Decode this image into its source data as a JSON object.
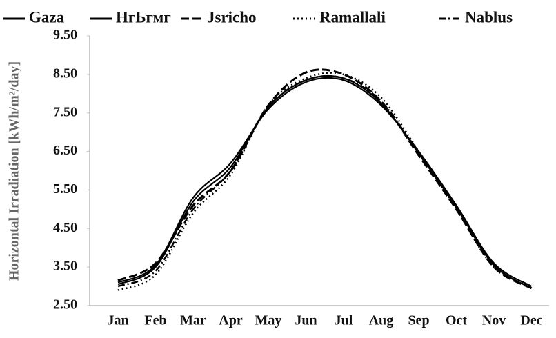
{
  "chart_data": {
    "type": "line",
    "y_label": "Horizontal Irradiation [kWh/m²/day]",
    "categories": [
      "Jan",
      "Feb",
      "Mar",
      "Apr",
      "May",
      "Jun",
      "Jul",
      "Aug",
      "Sep",
      "Oct",
      "Nov",
      "Dec"
    ],
    "series": [
      {
        "name": "Gaza",
        "color": "#000000",
        "line_style": "solid",
        "values": [
          3.1,
          3.55,
          5.3,
          6.2,
          7.6,
          8.3,
          8.35,
          7.7,
          6.5,
          5.1,
          3.6,
          3.0
        ]
      },
      {
        "name": "НгЬгмг",
        "color": "#000000",
        "line_style": "solid",
        "values": [
          3.05,
          3.5,
          5.2,
          6.1,
          7.65,
          8.35,
          8.4,
          7.75,
          6.45,
          5.05,
          3.55,
          2.95
        ]
      },
      {
        "name": "Jsricho",
        "color": "#000000",
        "line_style": "dashed",
        "values": [
          3.15,
          3.6,
          5.1,
          6.0,
          7.7,
          8.55,
          8.5,
          7.8,
          6.4,
          5.0,
          3.5,
          2.95
        ]
      },
      {
        "name": "Ramallali",
        "color": "#000000",
        "line_style": "dotted",
        "values": [
          2.9,
          3.3,
          4.9,
          5.9,
          7.7,
          8.4,
          8.5,
          7.9,
          6.5,
          5.0,
          3.5,
          3.0
        ]
      },
      {
        "name": "Nablus",
        "color": "#000000",
        "line_style": "dashdot",
        "values": [
          3.0,
          3.4,
          5.0,
          6.0,
          7.65,
          8.35,
          8.4,
          7.8,
          6.45,
          5.05,
          3.55,
          2.95
        ]
      }
    ],
    "ylim": [
      2.5,
      9.5
    ],
    "yticks": [
      {
        "value": 2.5,
        "label": "2.50"
      },
      {
        "value": 3.5,
        "label": "3.50"
      },
      {
        "value": 4.5,
        "label": "4.50"
      },
      {
        "value": 5.5,
        "label": "5.50"
      },
      {
        "value": 6.5,
        "label": "6.50"
      },
      {
        "value": 7.5,
        "label": "7.50"
      },
      {
        "value": 8.5,
        "label": "8.50"
      },
      {
        "value": 9.5,
        "label": "9.50"
      }
    ],
    "grid": false,
    "legend": "top"
  }
}
